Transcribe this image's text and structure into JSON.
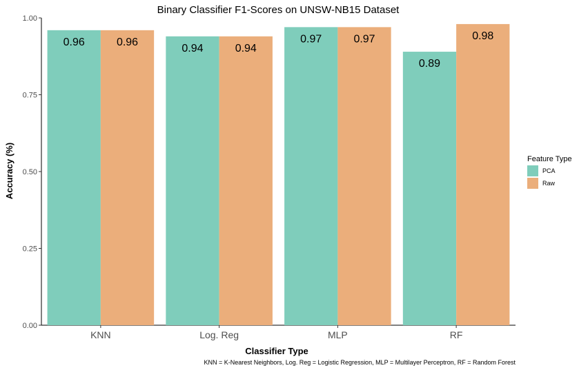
{
  "chart_data": {
    "type": "bar",
    "title": "Binary Classifier F1-Scores on UNSW-NB15 Dataset",
    "xlabel": "Classifier Type",
    "ylabel": "Accuracy (%)",
    "categories": [
      "KNN",
      "Log. Reg",
      "MLP",
      "RF"
    ],
    "series": [
      {
        "name": "PCA",
        "values": [
          0.96,
          0.94,
          0.97,
          0.89
        ],
        "color": "#7FCDBB"
      },
      {
        "name": "Raw",
        "values": [
          0.96,
          0.94,
          0.97,
          0.98
        ],
        "color": "#EBAE7B"
      }
    ],
    "data_labels": [
      [
        "0.96",
        "0.94",
        "0.97",
        "0.89"
      ],
      [
        "0.96",
        "0.94",
        "0.97",
        "0.98"
      ]
    ],
    "ylim": [
      0,
      1.0
    ],
    "yticks": [
      0.0,
      0.25,
      0.5,
      0.75,
      1.0
    ],
    "ytick_labels": [
      "0.00",
      "0.25",
      "0.50",
      "0.75",
      "1.00"
    ],
    "grid": false,
    "legend": {
      "title": "Feature Type",
      "position": "right"
    },
    "caption": "KNN = K-Nearest Neighbors, Log. Reg = Logistic Regression, MLP = Multilayer Perceptron, RF = Random Forest"
  }
}
